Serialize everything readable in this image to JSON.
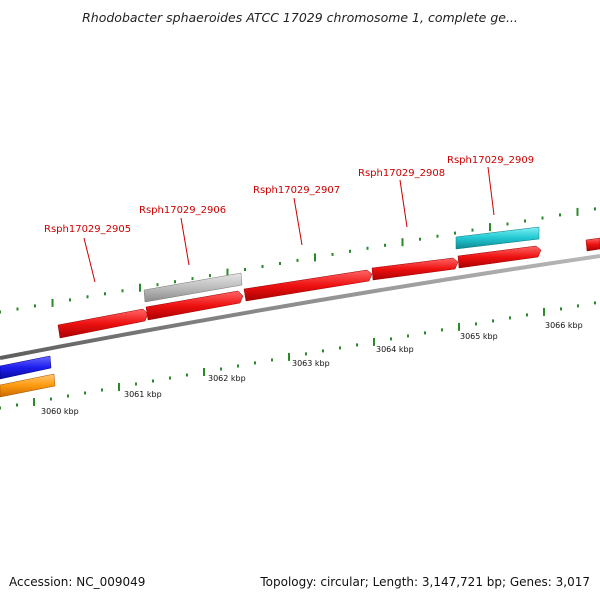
{
  "title": "Rhodobacter sphaeroides ATCC 17029 chromosome 1, complete ge...",
  "footer": {
    "accession": "Accession: NC_009049",
    "summary": "Topology: circular; Length: 3,147,721 bp; Genes: 3,017"
  },
  "locus_tags": [
    "Rsph17029_2905",
    "Rsph17029_2906",
    "Rsph17029_2907",
    "Rsph17029_2908",
    "Rsph17029_2909"
  ],
  "kbp_labels": [
    "3060 kbp",
    "3061 kbp",
    "3062 kbp",
    "3063 kbp",
    "3064 kbp",
    "3065 kbp",
    "3066 kbp"
  ],
  "colors": {
    "backbone": "#8c8c8c",
    "gene_red": "#ee1111",
    "gene_grey": "#bdbdbd",
    "gene_cyan": "#22c8d2",
    "gene_blue": "#1d1dee",
    "gene_orange": "#ff9a10",
    "tick": "#2a8a2a",
    "label_red": "#cc0000"
  }
}
